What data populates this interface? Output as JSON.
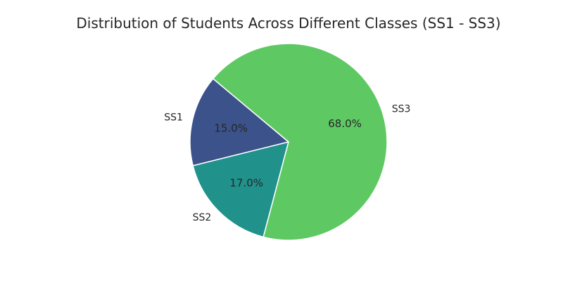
{
  "chart_data": {
    "type": "pie",
    "title": "Distribution of Students Across Different Classes (SS1 - SS3)",
    "categories": [
      "SS1",
      "SS2",
      "SS3"
    ],
    "values": [
      15.0,
      17.0,
      68.0
    ],
    "value_labels": [
      "15.0%",
      "17.0%",
      "68.0%"
    ],
    "colors": [
      "#3b528b",
      "#21918c",
      "#5ec962"
    ],
    "slice_edge_color": "#ffffff",
    "legend": "none"
  }
}
